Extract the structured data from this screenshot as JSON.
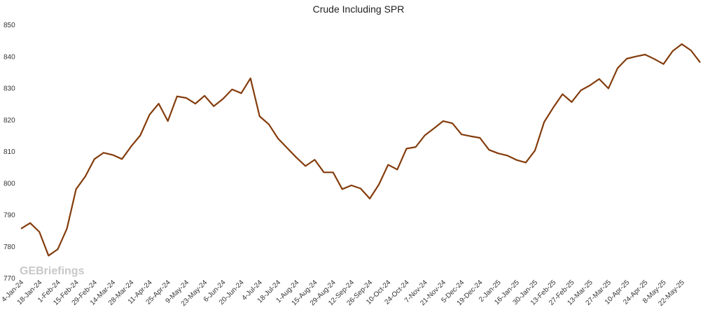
{
  "chart_data": {
    "type": "line",
    "title": "Crude Including SPR",
    "watermark": "GEBriefings",
    "categories": [
      "4-Jan-24",
      null,
      "18-Jan-24",
      null,
      "1-Feb-24",
      null,
      "15-Feb-24",
      null,
      "29-Feb-24",
      null,
      "14-Mar-24",
      null,
      "28-Mar-24",
      null,
      "11-Apr-24",
      null,
      "25-Apr-24",
      null,
      "9-May-24",
      null,
      "23-May-24",
      null,
      "6-Jun-24",
      null,
      "20-Jun-24",
      null,
      "4-Jul-24",
      null,
      "18-Jul-24",
      null,
      "1-Aug-24",
      null,
      "15-Aug-24",
      null,
      "29-Aug-24",
      null,
      "12-Sep-24",
      null,
      "26-Sep-24",
      null,
      "10-Oct-24",
      null,
      "24-Oct-24",
      null,
      "7-Nov-24",
      null,
      "21-Nov-24",
      null,
      "5-Dec-24",
      null,
      "19-Dec-24",
      null,
      "2-Jan-25",
      null,
      "16-Jan-25",
      null,
      "30-Jan-25",
      null,
      "13-Feb-25",
      null,
      "27-Feb-25",
      null,
      "13-Mar-25",
      null,
      "27-Mar-25",
      null,
      "10-Apr-25",
      null,
      "24-Apr-25",
      null,
      "8-May-25",
      null,
      "22-May-25",
      null,
      null
    ],
    "series": [
      {
        "name": "Crude Including SPR",
        "color": "#843c0c",
        "values": [
          785.5,
          787.3,
          784.5,
          777,
          779,
          785.5,
          798,
          802,
          807.5,
          809.5,
          808.8,
          807.5,
          811.5,
          815,
          821.5,
          825,
          819.5,
          827.3,
          826.8,
          825,
          827.5,
          824.2,
          826.5,
          829.5,
          828.3,
          833,
          821,
          818.5,
          814,
          811,
          808,
          805.3,
          807.3,
          803.3,
          803.3,
          798,
          799.2,
          798.2,
          795,
          799.5,
          805.7,
          804.2,
          810.8,
          811.3,
          815,
          817.2,
          819.5,
          818.8,
          815.3,
          814.7,
          814.2,
          810.4,
          809.3,
          808.6,
          807.2,
          806.4,
          810.2,
          819.2,
          823.8,
          828,
          825.5,
          829.2,
          830.8,
          832.8,
          829.8,
          836.2,
          839.2,
          839.9,
          840.5,
          839.1,
          837.5,
          841.6,
          843.8,
          841.8,
          838
        ]
      }
    ],
    "ylim": [
      770,
      850
    ],
    "yticks": [
      770,
      780,
      790,
      800,
      810,
      820,
      830,
      840,
      850
    ],
    "grid": false
  }
}
